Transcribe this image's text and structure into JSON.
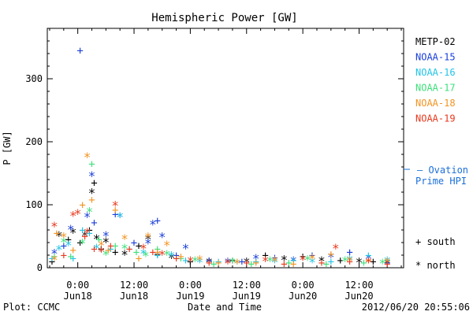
{
  "chart_data": {
    "type": "scatter",
    "title": "Hemispheric Power [GW]",
    "xlabel": "Date and Time",
    "ylabel": "P [GW]",
    "xlim_hours": [
      -6.5,
      69.5
    ],
    "ylim": [
      0,
      380
    ],
    "y_ticks": [
      0,
      100,
      200,
      300
    ],
    "x_tick_hours": [
      0,
      12,
      24,
      36,
      48,
      60
    ],
    "x_tick_labels": [
      [
        "0:00",
        "Jun18"
      ],
      [
        "12:00",
        "Jun18"
      ],
      [
        "0:00",
        "Jun19"
      ],
      [
        "12:00",
        "Jun19"
      ],
      [
        "0:00",
        "Jun20"
      ],
      [
        "12:00",
        "Jun20"
      ]
    ],
    "legend": [
      {
        "name": "METP-02",
        "color": "#000000"
      },
      {
        "name": "NOAA-15",
        "color": "#1a3fd9"
      },
      {
        "name": "NOAA-16",
        "color": "#22c4e6"
      },
      {
        "name": "NOAA-17",
        "color": "#3de07a"
      },
      {
        "name": "NOAA-18",
        "color": "#f29422"
      },
      {
        "name": "NOAA-19",
        "color": "#e8391e"
      }
    ],
    "ovation_label": [
      "– Ovation",
      "Prime HPI"
    ],
    "ovation_color": "#1a6fd9",
    "marker_legend": [
      {
        "symbol": "+",
        "label": "south"
      },
      {
        "symbol": "*",
        "label": "north"
      }
    ],
    "series": [
      {
        "name": "METP-02",
        "color": "#000000",
        "points": [
          [
            -5.5,
            10,
            "+"
          ],
          [
            -4,
            50,
            "*"
          ],
          [
            -2,
            45,
            "+"
          ],
          [
            -1,
            55,
            "*"
          ],
          [
            0.5,
            40,
            "+"
          ],
          [
            1.5,
            50,
            "*"
          ],
          [
            2.5,
            60,
            "+"
          ],
          [
            3,
            118,
            "*"
          ],
          [
            3.5,
            135,
            "+"
          ],
          [
            4,
            45,
            "*"
          ],
          [
            5,
            30,
            "+"
          ],
          [
            6,
            40,
            "*"
          ],
          [
            8,
            25,
            "+"
          ],
          [
            10,
            20,
            "*"
          ],
          [
            13,
            35,
            "+"
          ],
          [
            15,
            45,
            "*"
          ],
          [
            17,
            22,
            "+"
          ],
          [
            20,
            15,
            "*"
          ],
          [
            24,
            10,
            "+"
          ],
          [
            28,
            8,
            "*"
          ],
          [
            33,
            12,
            "+"
          ],
          [
            36,
            8,
            "*"
          ],
          [
            40,
            20,
            "+"
          ],
          [
            44,
            12,
            "*"
          ],
          [
            48,
            18,
            "+"
          ],
          [
            52,
            10,
            "*"
          ],
          [
            56,
            12,
            "+"
          ],
          [
            60,
            8,
            "*"
          ],
          [
            63,
            10,
            "+"
          ],
          [
            66,
            6,
            "*"
          ]
        ]
      },
      {
        "name": "NOAA-15",
        "color": "#1a3fd9",
        "points": [
          [
            -5,
            22,
            "*"
          ],
          [
            -3,
            35,
            "+"
          ],
          [
            -1.5,
            60,
            "*"
          ],
          [
            0.5,
            345,
            "+"
          ],
          [
            2,
            80,
            "*"
          ],
          [
            3,
            145,
            "*"
          ],
          [
            3.5,
            72,
            "+"
          ],
          [
            6,
            50,
            "*"
          ],
          [
            8,
            85,
            "+"
          ],
          [
            9,
            80,
            "*"
          ],
          [
            12,
            40,
            "+"
          ],
          [
            15,
            38,
            "*"
          ],
          [
            16,
            68,
            "*"
          ],
          [
            17,
            75,
            "+"
          ],
          [
            18,
            48,
            "*"
          ],
          [
            21,
            20,
            "+"
          ],
          [
            23,
            30,
            "*"
          ],
          [
            28,
            12,
            "+"
          ],
          [
            32,
            8,
            "*"
          ],
          [
            35,
            10,
            "+"
          ],
          [
            38,
            14,
            "*"
          ],
          [
            42,
            16,
            "+"
          ],
          [
            46,
            10,
            "*"
          ],
          [
            50,
            20,
            "+"
          ],
          [
            54,
            16,
            "*"
          ],
          [
            58,
            25,
            "+"
          ],
          [
            62,
            14,
            "*"
          ],
          [
            66,
            8,
            "+"
          ]
        ]
      },
      {
        "name": "NOAA-16",
        "color": "#22c4e6",
        "points": [
          [
            -5.5,
            15,
            "+"
          ],
          [
            -4,
            28,
            "*"
          ],
          [
            -2,
            35,
            "*"
          ],
          [
            -1,
            15,
            "+"
          ],
          [
            1,
            60,
            "+"
          ],
          [
            2.5,
            55,
            "+"
          ],
          [
            4,
            30,
            "*"
          ],
          [
            7,
            30,
            "+"
          ],
          [
            9,
            80,
            "*"
          ],
          [
            11,
            30,
            "+"
          ],
          [
            14,
            22,
            "*"
          ],
          [
            17,
            20,
            "+"
          ],
          [
            20,
            18,
            "*"
          ],
          [
            23,
            12,
            "+"
          ],
          [
            26,
            8,
            "*"
          ],
          [
            30,
            10,
            "+"
          ],
          [
            34,
            6,
            "*"
          ],
          [
            38,
            10,
            "+"
          ],
          [
            42,
            8,
            "*"
          ],
          [
            46,
            12,
            "+"
          ],
          [
            50,
            8,
            "*"
          ],
          [
            54,
            10,
            "+"
          ],
          [
            58,
            12,
            "*"
          ],
          [
            62,
            20,
            "+"
          ],
          [
            66,
            10,
            "*"
          ]
        ]
      },
      {
        "name": "NOAA-17",
        "color": "#3de07a",
        "points": [
          [
            -5,
            18,
            "+"
          ],
          [
            -3,
            40,
            "*"
          ],
          [
            -1.5,
            18,
            "+"
          ],
          [
            1,
            38,
            "*"
          ],
          [
            2.5,
            88,
            "*"
          ],
          [
            3,
            165,
            "+"
          ],
          [
            4.5,
            45,
            "+"
          ],
          [
            6,
            20,
            "*"
          ],
          [
            8,
            35,
            "+"
          ],
          [
            10,
            30,
            "*"
          ],
          [
            12.5,
            25,
            "+"
          ],
          [
            14.5,
            18,
            "*"
          ],
          [
            17,
            30,
            "+"
          ],
          [
            19,
            20,
            "*"
          ],
          [
            22,
            15,
            "+"
          ],
          [
            25,
            10,
            "*"
          ],
          [
            29,
            6,
            "+"
          ],
          [
            33,
            8,
            "*"
          ],
          [
            37,
            6,
            "+"
          ],
          [
            41,
            10,
            "*"
          ],
          [
            45,
            8,
            "+"
          ],
          [
            49,
            12,
            "*"
          ],
          [
            53,
            6,
            "+"
          ],
          [
            57,
            10,
            "*"
          ],
          [
            61,
            8,
            "+"
          ],
          [
            65,
            6,
            "*"
          ]
        ]
      },
      {
        "name": "NOAA-18",
        "color": "#f29422",
        "points": [
          [
            -5,
            12,
            "*"
          ],
          [
            -4.5,
            55,
            "+"
          ],
          [
            -3,
            48,
            "*"
          ],
          [
            -1,
            28,
            "+"
          ],
          [
            1,
            100,
            "+"
          ],
          [
            2,
            175,
            "*"
          ],
          [
            3,
            108,
            "+"
          ],
          [
            5,
            35,
            "*"
          ],
          [
            6.5,
            28,
            "+"
          ],
          [
            8,
            92,
            "+"
          ],
          [
            10,
            45,
            "*"
          ],
          [
            13,
            15,
            "+"
          ],
          [
            15,
            48,
            "*"
          ],
          [
            17,
            25,
            "+"
          ],
          [
            19,
            35,
            "*"
          ],
          [
            22,
            18,
            "+"
          ],
          [
            26,
            12,
            "*"
          ],
          [
            30,
            8,
            "+"
          ],
          [
            34,
            6,
            "*"
          ],
          [
            38,
            8,
            "+"
          ],
          [
            42,
            10,
            "*"
          ],
          [
            46,
            6,
            "+"
          ],
          [
            50,
            14,
            "*"
          ],
          [
            54,
            22,
            "+"
          ],
          [
            58,
            10,
            "*"
          ],
          [
            62,
            12,
            "+"
          ],
          [
            66,
            8,
            "*"
          ]
        ]
      },
      {
        "name": "NOAA-19",
        "color": "#e8391e",
        "points": [
          [
            -5,
            65,
            "*"
          ],
          [
            -3,
            20,
            "+"
          ],
          [
            -1,
            82,
            "*"
          ],
          [
            0,
            85,
            "*"
          ],
          [
            1.5,
            50,
            "+"
          ],
          [
            2,
            55,
            "*"
          ],
          [
            3.5,
            30,
            "+"
          ],
          [
            5,
            25,
            "*"
          ],
          [
            7,
            35,
            "+"
          ],
          [
            8,
            98,
            "*"
          ],
          [
            11,
            30,
            "+"
          ],
          [
            14,
            30,
            "*"
          ],
          [
            16,
            25,
            "+"
          ],
          [
            18,
            20,
            "*"
          ],
          [
            21,
            15,
            "+"
          ],
          [
            24,
            10,
            "*"
          ],
          [
            28,
            8,
            "+"
          ],
          [
            32,
            6,
            "*"
          ],
          [
            36,
            8,
            "+"
          ],
          [
            40,
            10,
            "*"
          ],
          [
            44,
            6,
            "+"
          ],
          [
            48,
            12,
            "*"
          ],
          [
            52,
            8,
            "+"
          ],
          [
            55,
            30,
            "*"
          ],
          [
            58,
            10,
            "+"
          ],
          [
            62,
            8,
            "*"
          ],
          [
            66,
            6,
            "+"
          ]
        ]
      }
    ]
  },
  "footer": {
    "left": "Plot: CCMC",
    "right": "2012/06/20 20:55:06"
  }
}
